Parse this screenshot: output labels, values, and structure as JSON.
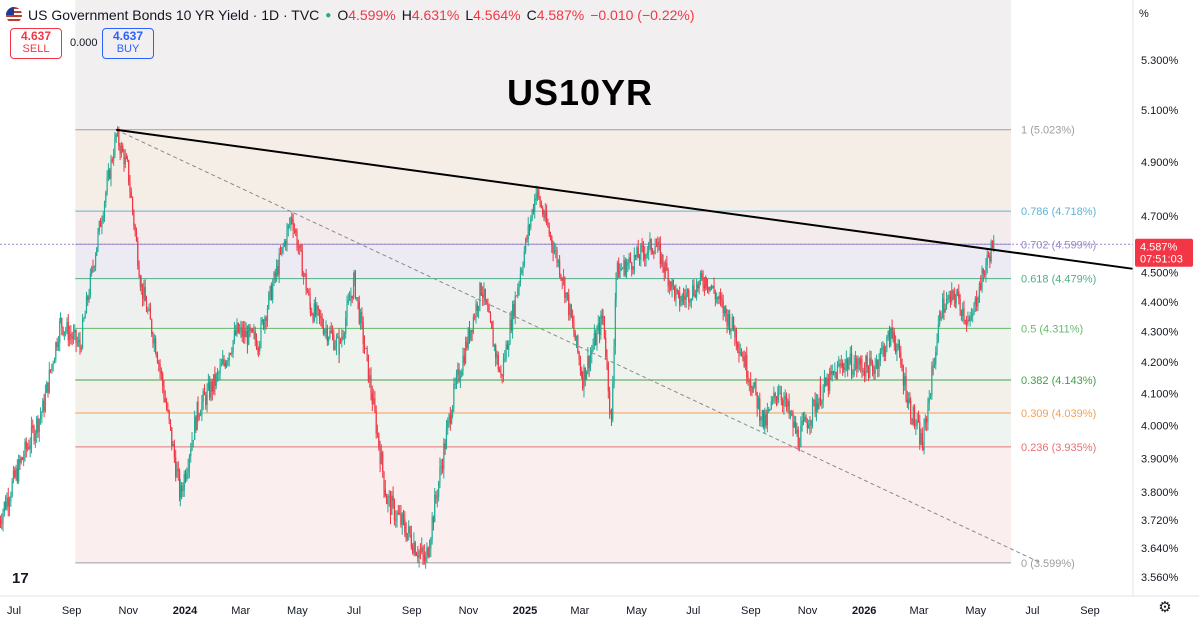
{
  "header": {
    "title": "US Government Bonds 10 YR Yield · 1D · TVC",
    "open_label": "O",
    "open": "4.599%",
    "high_label": "H",
    "high": "4.631%",
    "low_label": "L",
    "low": "4.564%",
    "close_label": "C",
    "close": "4.587%",
    "change": "−0.010 (−0.22%)"
  },
  "trade": {
    "sell_value": "4.637",
    "sell_label": "SELL",
    "spread": "0.000",
    "buy_value": "4.637",
    "buy_label": "BUY"
  },
  "annotation": {
    "big_title": "US10YR"
  },
  "axis": {
    "unit": "%"
  },
  "icons": {
    "settings": "gear-icon",
    "logo": "tradingview-logo-icon"
  },
  "colors": {
    "up": "#22ab94",
    "down": "#f23645",
    "trendline": "#000000",
    "fib_1": "#9e9e9e",
    "fib_786": "#5fb4d6",
    "fib_702": "#9c88c9",
    "fib_618": "#4caf84",
    "fib_5": "#66bb6a",
    "fib_382": "#43a047",
    "fib_309": "#f0a05a",
    "fib_236": "#e57373",
    "fib_0": "#9e9e9e"
  },
  "chart_data": {
    "type": "line",
    "title": "US10YR",
    "subtitle": "US Government Bonds 10 YR Yield · 1D · TVC",
    "ylabel": "%",
    "x_ticks": [
      "Jul",
      "Sep",
      "Nov",
      "2024",
      "Mar",
      "May",
      "Jul",
      "Sep",
      "Nov",
      "2025",
      "Mar",
      "May",
      "Jul",
      "Sep",
      "Nov",
      "2026",
      "Mar",
      "May",
      "Jul",
      "Sep"
    ],
    "y_ticks": [
      5.3,
      5.1,
      4.9,
      4.7,
      4.5,
      4.4,
      4.3,
      4.2,
      4.1,
      4.0,
      3.9,
      3.8,
      3.72,
      3.64,
      3.56
    ],
    "y_tick_labels": [
      "5.300%",
      "5.100%",
      "4.900%",
      "4.700%",
      "4.500%",
      "4.400%",
      "4.300%",
      "4.200%",
      "4.100%",
      "4.000%",
      "3.900%",
      "3.800%",
      "3.720%",
      "3.640%",
      "3.560%"
    ],
    "ylim": [
      3.52,
      5.45
    ],
    "y_scale": "log",
    "series": [
      {
        "values": [
          [
            "2023-06-15",
            3.72
          ],
          [
            "2023-07-10",
            3.9
          ],
          [
            "2023-08-01",
            4.05
          ],
          [
            "2023-08-20",
            4.33
          ],
          [
            "2023-09-10",
            4.25
          ],
          [
            "2023-09-28",
            4.6
          ],
          [
            "2023-10-19",
            5.0
          ],
          [
            "2023-10-31",
            4.88
          ],
          [
            "2023-11-15",
            4.45
          ],
          [
            "2023-12-01",
            4.25
          ],
          [
            "2023-12-27",
            3.79
          ],
          [
            "2024-01-15",
            4.05
          ],
          [
            "2024-02-05",
            4.15
          ],
          [
            "2024-02-26",
            4.3
          ],
          [
            "2024-03-20",
            4.27
          ],
          [
            "2024-04-25",
            4.7
          ],
          [
            "2024-05-15",
            4.38
          ],
          [
            "2024-06-15",
            4.25
          ],
          [
            "2024-07-01",
            4.47
          ],
          [
            "2024-08-05",
            3.78
          ],
          [
            "2024-09-16",
            3.6
          ],
          [
            "2024-10-15",
            4.08
          ],
          [
            "2024-11-15",
            4.45
          ],
          [
            "2024-12-06",
            4.15
          ],
          [
            "2025-01-13",
            4.79
          ],
          [
            "2025-02-10",
            4.49
          ],
          [
            "2025-03-04",
            4.15
          ],
          [
            "2025-03-26",
            4.35
          ],
          [
            "2025-04-04",
            4.0
          ],
          [
            "2025-04-09",
            4.5
          ],
          [
            "2025-05-21",
            4.6
          ],
          [
            "2025-06-15",
            4.4
          ],
          [
            "2025-07-15",
            4.48
          ],
          [
            "2025-08-15",
            4.3
          ],
          [
            "2025-09-16",
            4.0
          ],
          [
            "2025-10-01",
            4.12
          ],
          [
            "2025-10-22",
            3.96
          ],
          [
            "2025-11-15",
            4.1
          ],
          [
            "2025-12-10",
            4.2
          ],
          [
            "2026-01-10",
            4.18
          ],
          [
            "2026-02-01",
            4.3
          ],
          [
            "2026-02-20",
            4.05
          ],
          [
            "2026-03-05",
            3.94
          ],
          [
            "2026-03-25",
            4.38
          ],
          [
            "2026-04-10",
            4.42
          ],
          [
            "2026-04-25",
            4.32
          ],
          [
            "2026-05-05",
            4.45
          ],
          [
            "2026-05-19",
            4.6
          ],
          [
            "2026-05-21",
            4.587
          ]
        ]
      }
    ],
    "fib_levels": [
      {
        "ratio": "1",
        "label": "1 (5.023%)",
        "value": 5.023
      },
      {
        "ratio": "0.786",
        "label": "0.786 (4.718%)",
        "value": 4.718
      },
      {
        "ratio": "0.702",
        "label": "0.702 (4.599%)",
        "value": 4.599
      },
      {
        "ratio": "0.618",
        "label": "0.618 (4.479%)",
        "value": 4.479
      },
      {
        "ratio": "0.5",
        "label": "0.5 (4.311%)",
        "value": 4.311
      },
      {
        "ratio": "0.382",
        "label": "0.382 (4.143%)",
        "value": 4.143
      },
      {
        "ratio": "0.309",
        "label": "0.309 (4.039%)",
        "value": 4.039
      },
      {
        "ratio": "0.236",
        "label": "0.236 (3.935%)",
        "value": 3.935
      },
      {
        "ratio": "0",
        "label": "0 (3.599%)",
        "value": 3.599
      }
    ],
    "trendline": {
      "from": [
        "2023-10-19",
        5.023
      ],
      "to": [
        "2026-07-25",
        4.52
      ]
    },
    "dashed_line": {
      "from": [
        "2023-10-19",
        5.023
      ],
      "to": [
        "2026-07-10",
        3.599
      ]
    },
    "last_price": {
      "value": "4.587%",
      "countdown": "07:51:03"
    }
  }
}
